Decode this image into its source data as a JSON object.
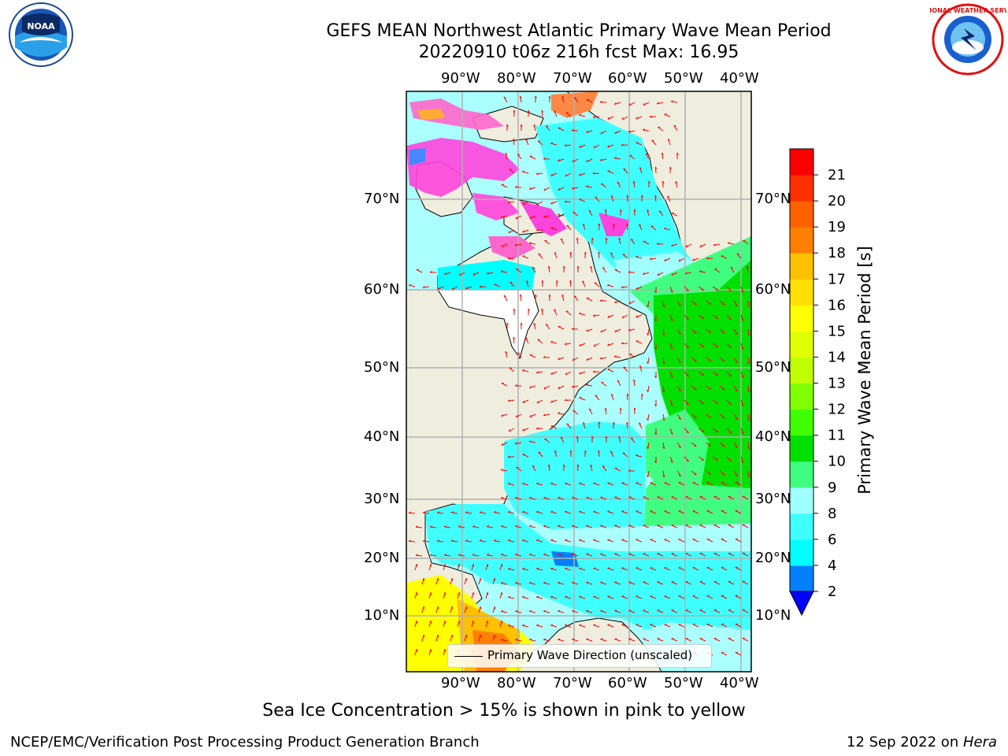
{
  "header": {
    "title_line1": "GEFS MEAN Northwest Atlantic Primary Wave Mean Period",
    "title_line2": "20220910 t06z 216h fcst   Max: 16.95"
  },
  "logos": {
    "noaa": "noaa-logo-icon",
    "nws": "nws-logo-icon"
  },
  "map": {
    "lon_ticks": [
      "90°W",
      "80°W",
      "70°W",
      "60°W",
      "50°W",
      "40°W"
    ],
    "lat_ticks": [
      "70°N",
      "60°N",
      "50°N",
      "40°N",
      "30°N",
      "20°N",
      "10°N"
    ],
    "land_color": "#efedde",
    "grid_color": "#b0b0b0",
    "arrow_color": "#ff0000",
    "legend_label": "Primary Wave Direction (unscaled)"
  },
  "colorbar": {
    "title": "Primary Wave Mean Period [s]",
    "ticks": [
      "2",
      "4",
      "6",
      "8",
      "9",
      "10",
      "11",
      "12",
      "13",
      "14",
      "15",
      "16",
      "17",
      "18",
      "19",
      "20",
      "21"
    ],
    "colors": [
      "#0080ff",
      "#00ffff",
      "#40ffff",
      "#a0ffff",
      "#40ff80",
      "#00e000",
      "#40ff00",
      "#80ff00",
      "#c0ff00",
      "#e0ff00",
      "#ffff00",
      "#ffe000",
      "#ffc000",
      "#ff8000",
      "#ff6000",
      "#ff3000",
      "#ff0000"
    ],
    "extend_color": "#0000ff"
  },
  "notes": {
    "sea_ice": "Sea Ice Concentration > 15% is shown in pink to yellow"
  },
  "footer": {
    "left": "NCEP/EMC/Verification Post Processing Product Generation Branch",
    "date": "12 Sep 2022 on ",
    "machine": "Hera"
  }
}
